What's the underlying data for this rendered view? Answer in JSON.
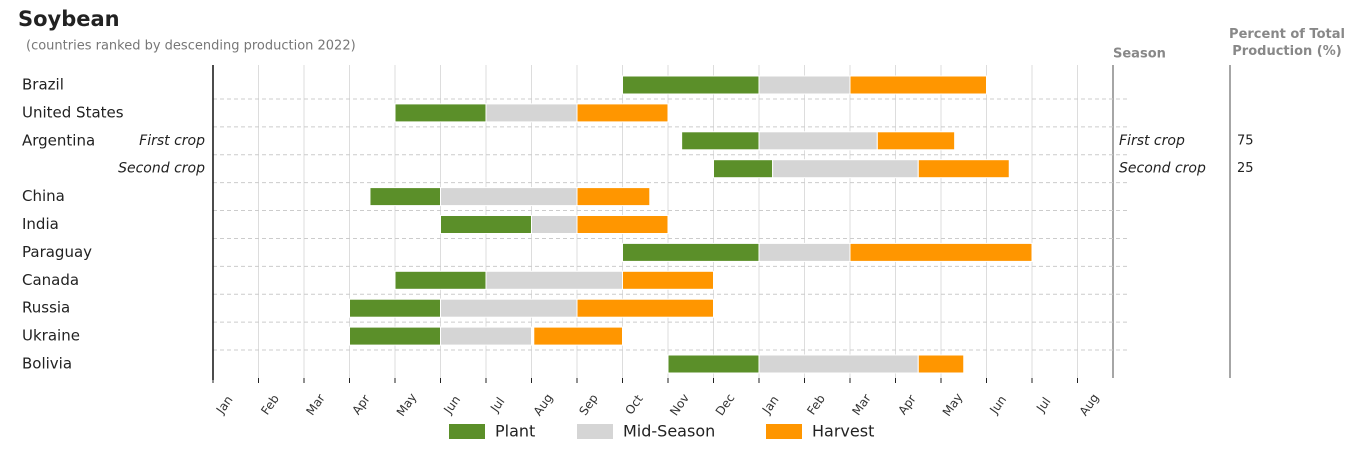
{
  "chart_data": {
    "type": "gantt",
    "title": "Soybean",
    "subtitle": "(countries ranked by descending production 2022)",
    "categories": [
      "Brazil",
      "United States",
      "Argentina",
      null,
      "China",
      "India",
      "Paraguay",
      "Canada",
      "Russia",
      "Ukraine",
      "Bolivia"
    ],
    "crops": [
      null,
      null,
      "First crop",
      "Second crop",
      null,
      null,
      null,
      null,
      null,
      null,
      null
    ],
    "xlim": [
      0,
      20
    ],
    "xticks": [
      {
        "value": 0,
        "label": "Jan"
      },
      {
        "value": 1,
        "label": "Feb"
      },
      {
        "value": 2,
        "label": "Mar"
      },
      {
        "value": 3,
        "label": "Apr"
      },
      {
        "value": 4,
        "label": "May"
      },
      {
        "value": 5,
        "label": "Jun"
      },
      {
        "value": 6,
        "label": "Jul"
      },
      {
        "value": 7,
        "label": "Aug"
      },
      {
        "value": 8,
        "label": "Sep"
      },
      {
        "value": 9,
        "label": "Oct"
      },
      {
        "value": 10,
        "label": "Nov"
      },
      {
        "value": 11,
        "label": "Dec"
      },
      {
        "value": 12,
        "label": "Jan"
      },
      {
        "value": 13,
        "label": "Feb"
      },
      {
        "value": 14,
        "label": "Mar"
      },
      {
        "value": 15,
        "label": "Apr"
      },
      {
        "value": 16,
        "label": "May"
      },
      {
        "value": 17,
        "label": "Jun"
      },
      {
        "value": 18,
        "label": "Jul"
      },
      {
        "value": 19,
        "label": "Aug"
      }
    ],
    "grid": true,
    "series": [
      {
        "name": "Plant",
        "color": "#5b8f29",
        "start": [
          9,
          4,
          10.3,
          11,
          3.45,
          5,
          9,
          4,
          3,
          3,
          10
        ],
        "end": [
          12,
          6,
          12,
          12.3,
          5,
          7,
          12,
          6,
          5,
          5,
          12
        ]
      },
      {
        "name": "Mid-Season",
        "color": "#d5d5d5",
        "start": [
          12,
          6,
          12,
          12.3,
          5,
          7,
          12,
          6,
          5,
          5,
          12
        ],
        "end": [
          14,
          8,
          14.6,
          15.5,
          8,
          8,
          14,
          9,
          8,
          7,
          15.5
        ]
      },
      {
        "name": "Harvest",
        "color": "#ff9600",
        "start": [
          14,
          8,
          14.6,
          15.5,
          8,
          8,
          14,
          9,
          8,
          7.05,
          15.5
        ],
        "end": [
          17,
          10,
          16.3,
          17.5,
          9.6,
          10,
          18,
          11,
          11,
          9,
          16.5
        ]
      }
    ],
    "season_table": {
      "season_header": "Season",
      "percent_header": "Percent of Total Production (%)",
      "rows": [
        {
          "season": "First crop",
          "percent": 75
        },
        {
          "season": "Second crop",
          "percent": 25
        }
      ]
    }
  }
}
